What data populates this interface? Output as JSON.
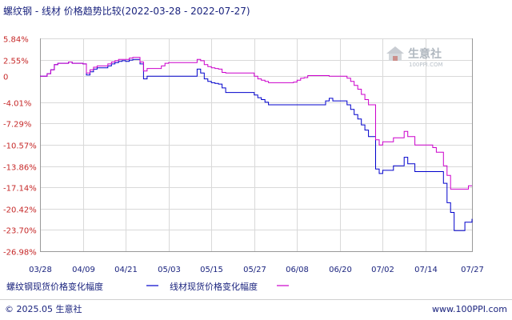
{
  "title": "螺纹钢 - 线材 价格趋势比较(2022-03-28 - 2022-07-27)",
  "footer": {
    "copyright": "© 2025.05 生意社",
    "site": "www.100PPI.com"
  },
  "watermark": {
    "name": "生意社",
    "site": "100PPI.COM"
  },
  "colors": {
    "series1": "#0000cc",
    "series2": "#cc00cc",
    "grid": "#d9d9d9",
    "axis": "#999999",
    "ytick": "#c62828",
    "text": "#1a237e"
  },
  "chart_data": {
    "type": "line",
    "title": "螺纹钢 - 线材 价格趋势比较(2022-03-28 - 2022-07-27)",
    "ylim": [
      -26.98,
      5.84
    ],
    "yticks": [
      "5.84%",
      "2.55%",
      "0",
      "-4.01%",
      "-7.29%",
      "-10.57%",
      "-13.86%",
      "-17.14%",
      "-20.42%",
      "-23.70%",
      "-26.98%"
    ],
    "ytick_values": [
      5.84,
      2.55,
      0,
      -4.01,
      -7.29,
      -10.57,
      -13.86,
      -17.14,
      -20.42,
      -23.7,
      -26.98
    ],
    "xticks": [
      "03/28",
      "04/09",
      "04/21",
      "05/03",
      "05/15",
      "05/27",
      "06/08",
      "06/20",
      "07/02",
      "07/14",
      "07/27"
    ],
    "xtick_days": [
      0,
      12,
      24,
      36,
      48,
      60,
      72,
      84,
      96,
      108,
      121
    ],
    "grid": true,
    "legend_position": "bottom",
    "series": [
      {
        "name": "螺纹钢现货价格变化幅度",
        "color": "#0000cc",
        "points": [
          [
            0,
            0
          ],
          [
            1,
            0
          ],
          [
            2,
            0.4
          ],
          [
            3,
            1
          ],
          [
            4,
            1.8
          ],
          [
            5,
            2
          ],
          [
            6,
            2
          ],
          [
            7,
            2
          ],
          [
            8,
            2.2
          ],
          [
            9,
            2
          ],
          [
            10,
            2
          ],
          [
            11,
            2
          ],
          [
            12,
            1.9
          ],
          [
            13,
            0.2
          ],
          [
            14,
            0.7
          ],
          [
            15,
            1.1
          ],
          [
            16,
            1.3
          ],
          [
            17,
            1.3
          ],
          [
            18,
            1.3
          ],
          [
            19,
            1.6
          ],
          [
            20,
            1.9
          ],
          [
            21,
            2.1
          ],
          [
            22,
            2.3
          ],
          [
            23,
            2.4
          ],
          [
            24,
            2.3
          ],
          [
            25,
            2.5
          ],
          [
            26,
            2.6
          ],
          [
            27,
            2.6
          ],
          [
            28,
            1.9
          ],
          [
            29,
            -0.4
          ],
          [
            30,
            0
          ],
          [
            31,
            0
          ],
          [
            32,
            0
          ],
          [
            33,
            0
          ],
          [
            34,
            0
          ],
          [
            35,
            0
          ],
          [
            36,
            0
          ],
          [
            37,
            0
          ],
          [
            38,
            0
          ],
          [
            39,
            0
          ],
          [
            40,
            0
          ],
          [
            41,
            0
          ],
          [
            42,
            0
          ],
          [
            43,
            0
          ],
          [
            44,
            1.1
          ],
          [
            45,
            0.5
          ],
          [
            46,
            -0.4
          ],
          [
            47,
            -0.8
          ],
          [
            48,
            -1
          ],
          [
            49,
            -1.1
          ],
          [
            50,
            -1.2
          ],
          [
            51,
            -1.8
          ],
          [
            52,
            -2.5
          ],
          [
            53,
            -2.5
          ],
          [
            54,
            -2.5
          ],
          [
            55,
            -2.5
          ],
          [
            56,
            -2.5
          ],
          [
            57,
            -2.5
          ],
          [
            58,
            -2.5
          ],
          [
            59,
            -2.5
          ],
          [
            60,
            -2.9
          ],
          [
            61,
            -3.3
          ],
          [
            62,
            -3.6
          ],
          [
            63,
            -4
          ],
          [
            64,
            -4.4
          ],
          [
            65,
            -4.4
          ],
          [
            66,
            -4.4
          ],
          [
            67,
            -4.4
          ],
          [
            68,
            -4.4
          ],
          [
            69,
            -4.4
          ],
          [
            70,
            -4.4
          ],
          [
            71,
            -4.4
          ],
          [
            72,
            -4.4
          ],
          [
            73,
            -4.4
          ],
          [
            74,
            -4.4
          ],
          [
            75,
            -4.4
          ],
          [
            76,
            -4.4
          ],
          [
            77,
            -4.4
          ],
          [
            78,
            -4.4
          ],
          [
            79,
            -4.4
          ],
          [
            80,
            -3.8
          ],
          [
            81,
            -3.4
          ],
          [
            82,
            -3.8
          ],
          [
            83,
            -3.8
          ],
          [
            84,
            -3.8
          ],
          [
            85,
            -3.8
          ],
          [
            86,
            -4.4
          ],
          [
            87,
            -5.1
          ],
          [
            88,
            -5.9
          ],
          [
            89,
            -6.6
          ],
          [
            90,
            -7.5
          ],
          [
            91,
            -8.3
          ],
          [
            92,
            -9.3
          ],
          [
            93,
            -9.3
          ],
          [
            94,
            -14.3
          ],
          [
            95,
            -15
          ],
          [
            96,
            -14.5
          ],
          [
            97,
            -14.5
          ],
          [
            98,
            -14.5
          ],
          [
            99,
            -13.8
          ],
          [
            100,
            -13.8
          ],
          [
            101,
            -13.8
          ],
          [
            102,
            -12.5
          ],
          [
            103,
            -13.5
          ],
          [
            104,
            -13.5
          ],
          [
            105,
            -14.7
          ],
          [
            106,
            -14.7
          ],
          [
            107,
            -14.7
          ],
          [
            108,
            -14.7
          ],
          [
            109,
            -14.7
          ],
          [
            110,
            -14.7
          ],
          [
            111,
            -14.7
          ],
          [
            112,
            -14.7
          ],
          [
            113,
            -16.5
          ],
          [
            114,
            -19.5
          ],
          [
            115,
            -21
          ],
          [
            116,
            -23.8
          ],
          [
            117,
            -23.8
          ],
          [
            118,
            -23.8
          ],
          [
            119,
            -22.5
          ],
          [
            120,
            -22.5
          ],
          [
            121,
            -22
          ]
        ]
      },
      {
        "name": "线材现货价格变化幅度",
        "color": "#cc00cc",
        "points": [
          [
            0,
            0
          ],
          [
            1,
            0
          ],
          [
            2,
            0.4
          ],
          [
            3,
            1
          ],
          [
            4,
            1.8
          ],
          [
            5,
            2
          ],
          [
            6,
            2
          ],
          [
            7,
            2
          ],
          [
            8,
            2.2
          ],
          [
            9,
            2
          ],
          [
            10,
            2
          ],
          [
            11,
            2
          ],
          [
            12,
            1.9
          ],
          [
            13,
            0.5
          ],
          [
            14,
            1
          ],
          [
            15,
            1.4
          ],
          [
            16,
            1.6
          ],
          [
            17,
            1.6
          ],
          [
            18,
            1.6
          ],
          [
            19,
            1.9
          ],
          [
            20,
            2.2
          ],
          [
            21,
            2.4
          ],
          [
            22,
            2.6
          ],
          [
            23,
            2.6
          ],
          [
            24,
            2.6
          ],
          [
            25,
            2.8
          ],
          [
            26,
            2.9
          ],
          [
            27,
            2.9
          ],
          [
            28,
            2.2
          ],
          [
            29,
            0.8
          ],
          [
            30,
            1.2
          ],
          [
            31,
            1.2
          ],
          [
            32,
            1.2
          ],
          [
            33,
            1.2
          ],
          [
            34,
            1.6
          ],
          [
            35,
            2
          ],
          [
            36,
            2.1
          ],
          [
            37,
            2.1
          ],
          [
            38,
            2.1
          ],
          [
            39,
            2.1
          ],
          [
            40,
            2.1
          ],
          [
            41,
            2.1
          ],
          [
            42,
            2.1
          ],
          [
            43,
            2.1
          ],
          [
            44,
            2.6
          ],
          [
            45,
            2.4
          ],
          [
            46,
            1.8
          ],
          [
            47,
            1.5
          ],
          [
            48,
            1.3
          ],
          [
            49,
            1.2
          ],
          [
            50,
            1.1
          ],
          [
            51,
            0.6
          ],
          [
            52,
            0.5
          ],
          [
            53,
            0.5
          ],
          [
            54,
            0.5
          ],
          [
            55,
            0.5
          ],
          [
            56,
            0.5
          ],
          [
            57,
            0.5
          ],
          [
            58,
            0.5
          ],
          [
            59,
            0.5
          ],
          [
            60,
            0
          ],
          [
            61,
            -0.4
          ],
          [
            62,
            -0.6
          ],
          [
            63,
            -0.8
          ],
          [
            64,
            -1
          ],
          [
            65,
            -1
          ],
          [
            66,
            -1
          ],
          [
            67,
            -1
          ],
          [
            68,
            -1
          ],
          [
            69,
            -1
          ],
          [
            70,
            -1
          ],
          [
            71,
            -0.9
          ],
          [
            72,
            -0.6
          ],
          [
            73,
            -0.3
          ],
          [
            74,
            -0.2
          ],
          [
            75,
            0.1
          ],
          [
            76,
            0.1
          ],
          [
            77,
            0.1
          ],
          [
            78,
            0.1
          ],
          [
            79,
            0.1
          ],
          [
            80,
            0.1
          ],
          [
            81,
            0
          ],
          [
            82,
            0
          ],
          [
            83,
            0
          ],
          [
            84,
            0
          ],
          [
            85,
            0
          ],
          [
            86,
            -0.3
          ],
          [
            87,
            -0.8
          ],
          [
            88,
            -1.4
          ],
          [
            89,
            -2
          ],
          [
            90,
            -2.8
          ],
          [
            91,
            -3.6
          ],
          [
            92,
            -4.4
          ],
          [
            93,
            -4.4
          ],
          [
            94,
            -9.8
          ],
          [
            95,
            -10.6
          ],
          [
            96,
            -10.1
          ],
          [
            97,
            -10.1
          ],
          [
            98,
            -10.1
          ],
          [
            99,
            -9.5
          ],
          [
            100,
            -9.5
          ],
          [
            101,
            -9.5
          ],
          [
            102,
            -8.5
          ],
          [
            103,
            -9.3
          ],
          [
            104,
            -9.3
          ],
          [
            105,
            -10.6
          ],
          [
            106,
            -10.6
          ],
          [
            107,
            -10.6
          ],
          [
            108,
            -10.6
          ],
          [
            109,
            -10.6
          ],
          [
            110,
            -11
          ],
          [
            111,
            -11.7
          ],
          [
            112,
            -11.7
          ],
          [
            113,
            -13.8
          ],
          [
            114,
            -15.3
          ],
          [
            115,
            -17.4
          ],
          [
            116,
            -17.4
          ],
          [
            117,
            -17.4
          ],
          [
            118,
            -17.4
          ],
          [
            119,
            -17.4
          ],
          [
            120,
            -16.9
          ],
          [
            121,
            -16.9
          ]
        ]
      }
    ]
  }
}
